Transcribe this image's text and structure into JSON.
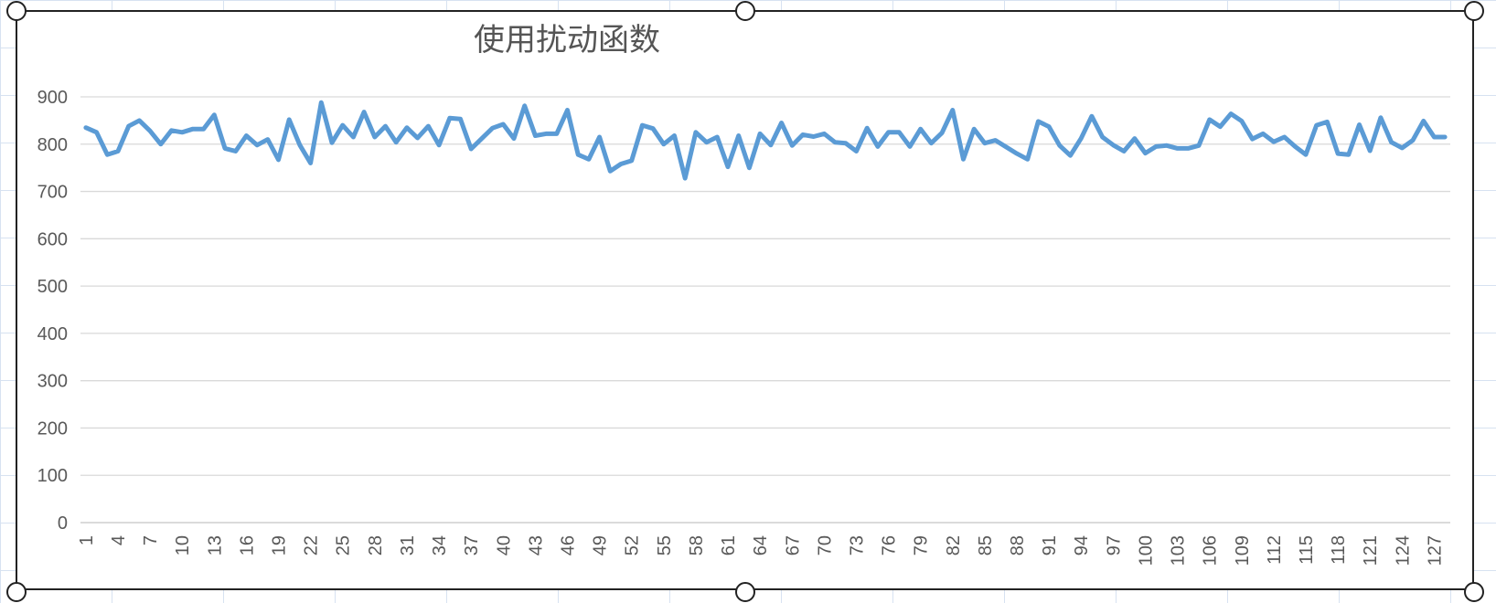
{
  "chart_data": {
    "type": "line",
    "title": "使用扰动函数",
    "xlabel": "",
    "ylabel": "",
    "ylim": [
      0,
      900
    ],
    "y_ticks": [
      0,
      100,
      200,
      300,
      400,
      500,
      600,
      700,
      800,
      900
    ],
    "x_tick_step": 3,
    "x_tick_labels": [
      "1",
      "4",
      "7",
      "10",
      "13",
      "16",
      "19",
      "22",
      "25",
      "28",
      "31",
      "34",
      "37",
      "40",
      "43",
      "46",
      "49",
      "52",
      "55",
      "58",
      "61",
      "64",
      "67",
      "70",
      "73",
      "76",
      "79",
      "82",
      "85",
      "88",
      "91",
      "94",
      "97",
      "100",
      "103",
      "106",
      "109",
      "112",
      "115",
      "118",
      "121",
      "124",
      "127"
    ],
    "grid": true,
    "legend": "none",
    "series": [
      {
        "color": "#5b9bd5",
        "x": [
          1,
          2,
          3,
          4,
          5,
          6,
          7,
          8,
          9,
          10,
          11,
          12,
          13,
          14,
          15,
          16,
          17,
          18,
          19,
          20,
          21,
          22,
          23,
          24,
          25,
          26,
          27,
          28,
          29,
          30,
          31,
          32,
          33,
          34,
          35,
          36,
          37,
          38,
          39,
          40,
          41,
          42,
          43,
          44,
          45,
          46,
          47,
          48,
          49,
          50,
          51,
          52,
          53,
          54,
          55,
          56,
          57,
          58,
          59,
          60,
          61,
          62,
          63,
          64,
          65,
          66,
          67,
          68,
          69,
          70,
          71,
          72,
          73,
          74,
          75,
          76,
          77,
          78,
          79,
          80,
          81,
          82,
          83,
          84,
          85,
          86,
          87,
          88,
          89,
          90,
          91,
          92,
          93,
          94,
          95,
          96,
          97,
          98,
          99,
          100,
          101,
          102,
          103,
          104,
          105,
          106,
          107,
          108,
          109,
          110,
          111,
          112,
          113,
          114,
          115,
          116,
          117,
          118,
          119,
          120,
          121,
          122,
          123,
          124,
          125,
          126,
          127,
          128
        ],
        "values": [
          835,
          825,
          778,
          785,
          838,
          850,
          828,
          800,
          829,
          825,
          832,
          832,
          862,
          791,
          785,
          818,
          798,
          810,
          767,
          852,
          798,
          760,
          888,
          803,
          840,
          815,
          868,
          815,
          838,
          804,
          835,
          813,
          838,
          798,
          855,
          853,
          790,
          812,
          834,
          842,
          812,
          881,
          818,
          822,
          822,
          872,
          778,
          768,
          815,
          743,
          758,
          765,
          840,
          833,
          800,
          818,
          728,
          825,
          804,
          815,
          752,
          818,
          750,
          822,
          798,
          845,
          797,
          820,
          816,
          822,
          804,
          802,
          785,
          834,
          795,
          825,
          825,
          795,
          832,
          802,
          824,
          872,
          768,
          832,
          802,
          808,
          794,
          780,
          768,
          848,
          837,
          797,
          776,
          812,
          859,
          815,
          798,
          785,
          812,
          781,
          795,
          797,
          791,
          791,
          797,
          852,
          837,
          864,
          849,
          811,
          822,
          805,
          815,
          795,
          778,
          840,
          847,
          780,
          778,
          841,
          786,
          856,
          804,
          792,
          808,
          849,
          815,
          815
        ]
      }
    ]
  }
}
